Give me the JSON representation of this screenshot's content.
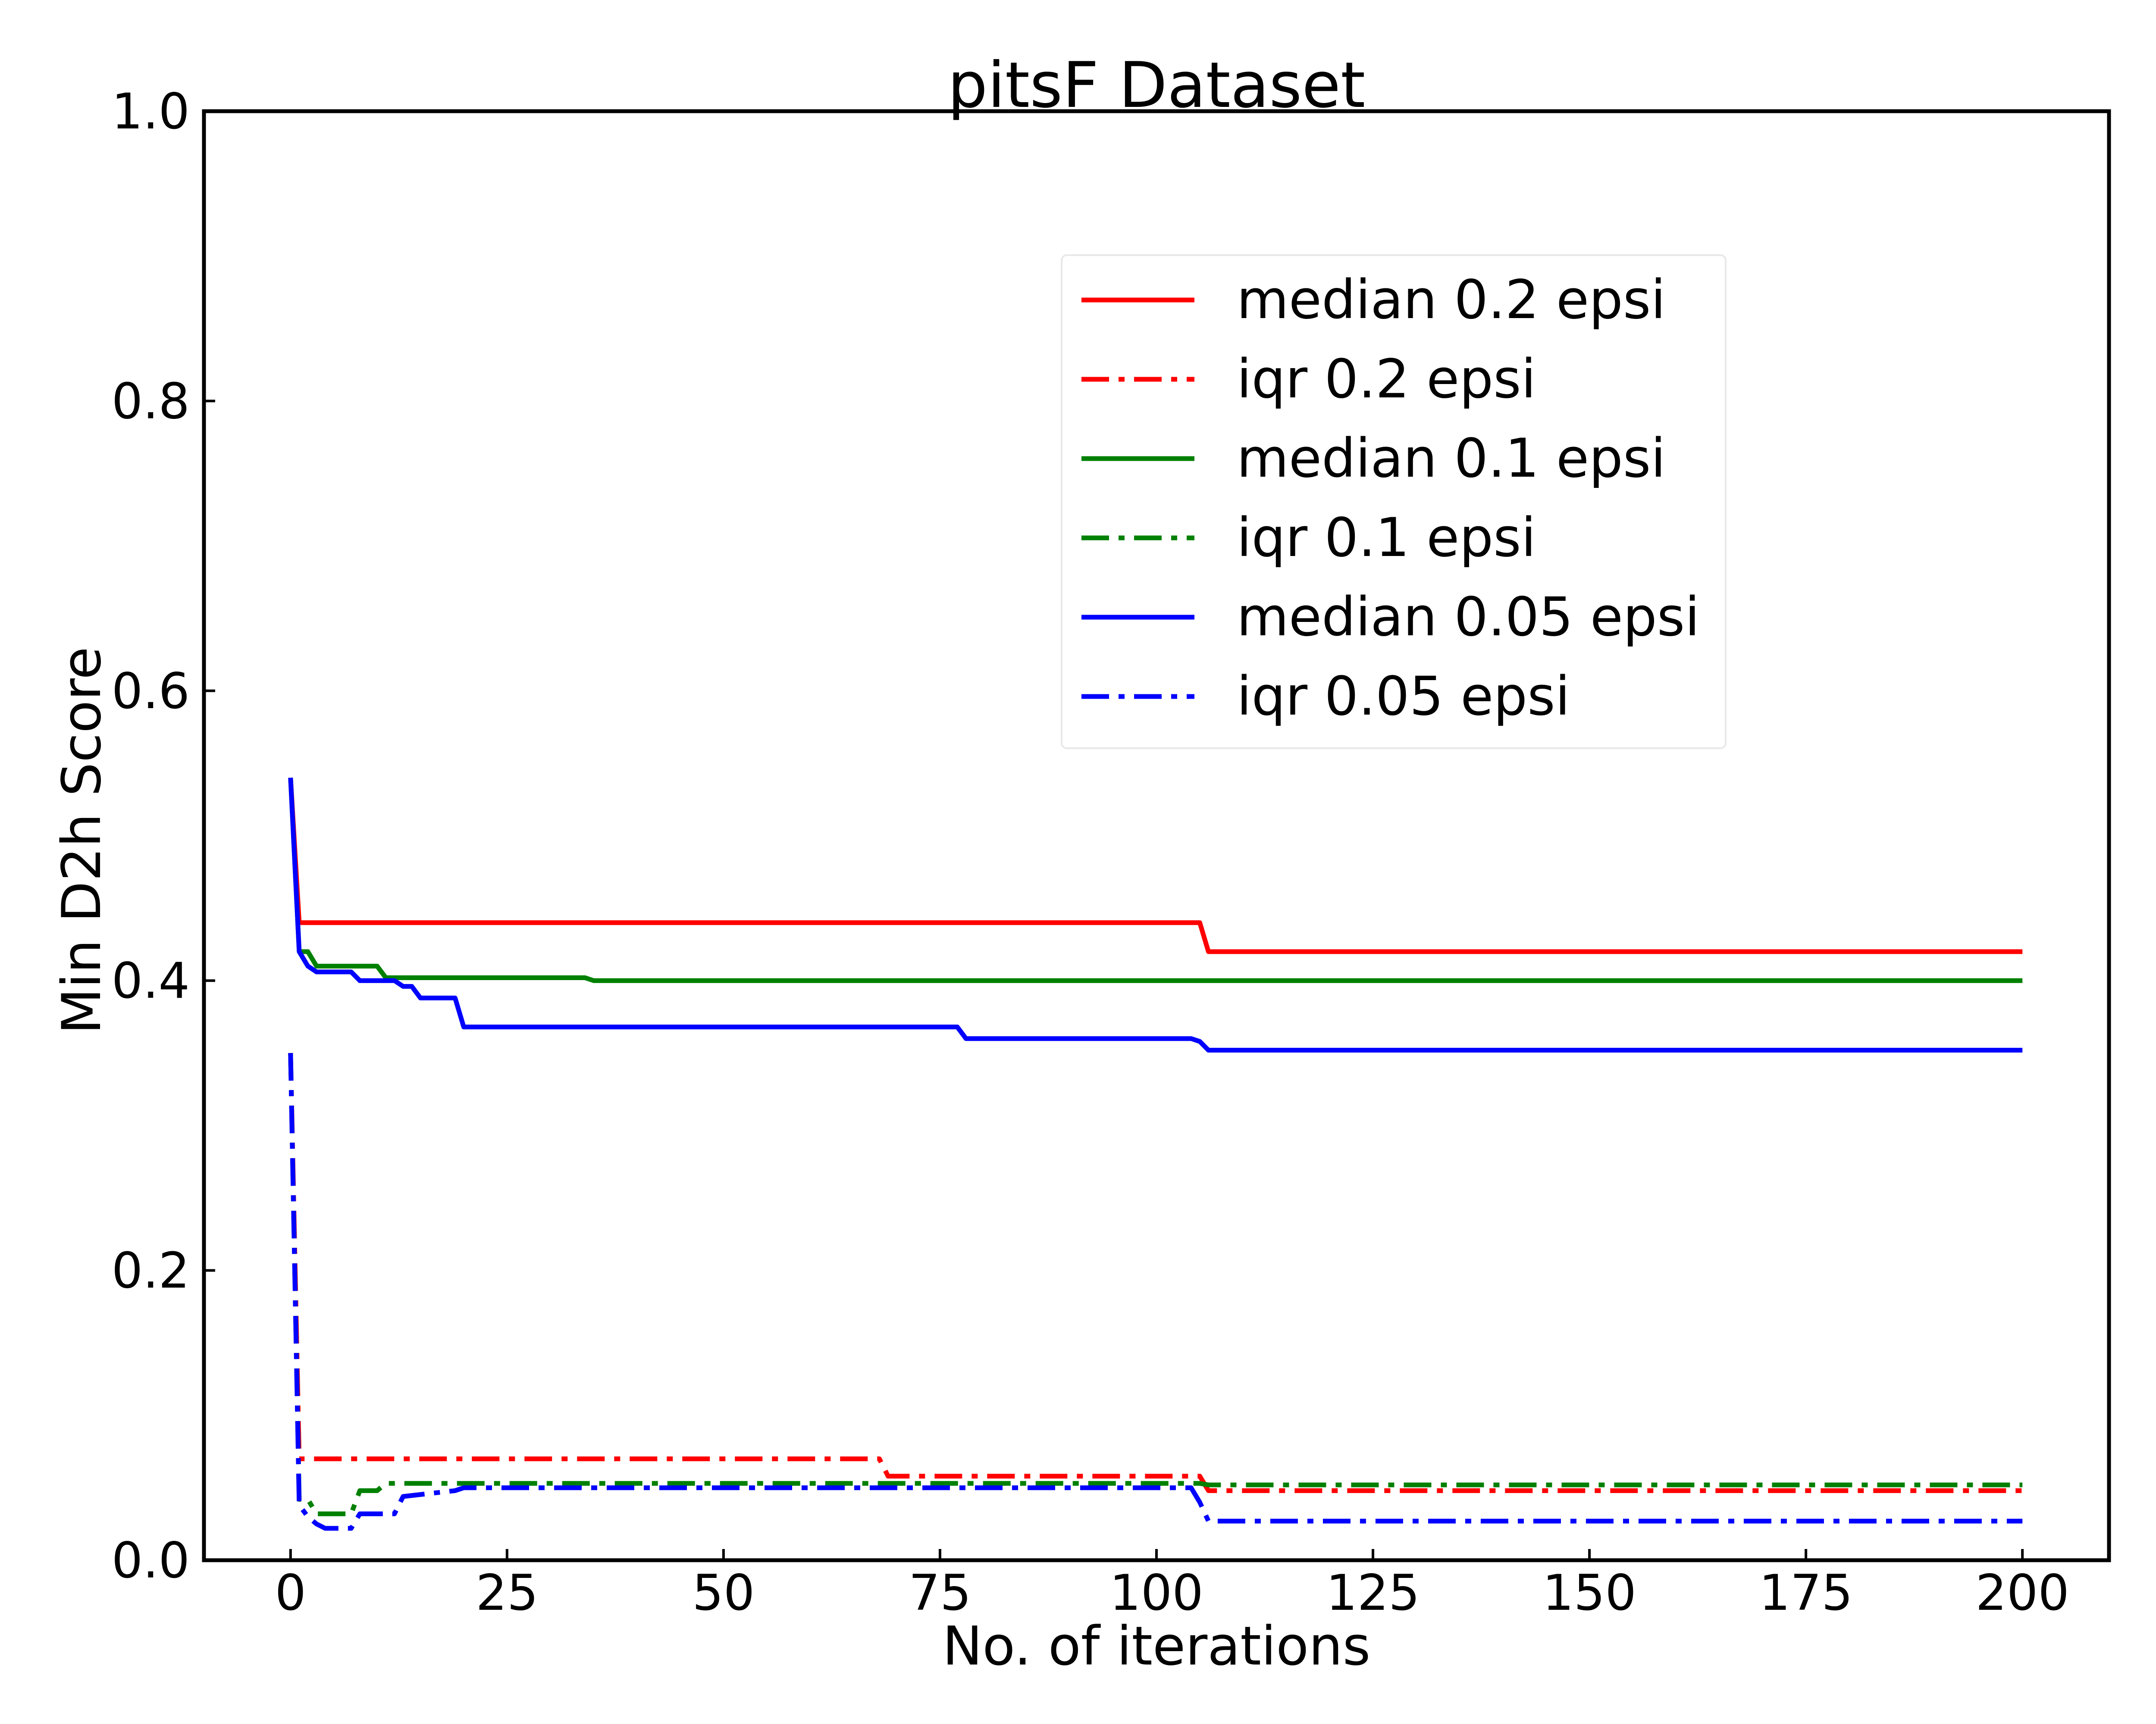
{
  "chart_data": {
    "type": "line",
    "title": "pitsF Dataset",
    "xlabel": "No. of iterations",
    "ylabel": "Min D2h Score",
    "xlim": [
      -10,
      210
    ],
    "ylim": [
      0.0,
      1.0
    ],
    "xticks": [
      0,
      25,
      50,
      75,
      100,
      125,
      150,
      175,
      200
    ],
    "xtick_labels": [
      "0",
      "25",
      "50",
      "75",
      "100",
      "125",
      "150",
      "175",
      "200"
    ],
    "yticks": [
      0.0,
      0.2,
      0.4,
      0.6,
      0.8,
      1.0
    ],
    "ytick_labels": [
      "0.0",
      "0.2",
      "0.4",
      "0.6",
      "0.8",
      "1.0"
    ],
    "grid": false,
    "legend_position": "upper right",
    "series": [
      {
        "name": "median 0.2 epsi",
        "color": "#ff0000",
        "style": "solid",
        "points": [
          [
            0,
            0.54
          ],
          [
            1,
            0.44
          ],
          [
            105,
            0.44
          ],
          [
            106,
            0.42
          ],
          [
            200,
            0.42
          ]
        ]
      },
      {
        "name": "iqr 0.2 epsi",
        "color": "#ff0000",
        "style": "dashdot",
        "points": [
          [
            0,
            0.35
          ],
          [
            1,
            0.07
          ],
          [
            68,
            0.07
          ],
          [
            69,
            0.058
          ],
          [
            105,
            0.058
          ],
          [
            106,
            0.048
          ],
          [
            200,
            0.048
          ]
        ]
      },
      {
        "name": "median 0.1 epsi",
        "color": "#008000",
        "style": "solid",
        "points": [
          [
            0,
            0.54
          ],
          [
            1,
            0.42
          ],
          [
            2,
            0.42
          ],
          [
            3,
            0.41
          ],
          [
            10,
            0.41
          ],
          [
            11,
            0.402
          ],
          [
            34,
            0.402
          ],
          [
            35,
            0.4
          ],
          [
            200,
            0.4
          ]
        ]
      },
      {
        "name": "iqr 0.1 epsi",
        "color": "#008000",
        "style": "dashdot",
        "points": [
          [
            0,
            0.35
          ],
          [
            1,
            0.042
          ],
          [
            2,
            0.042
          ],
          [
            3,
            0.032
          ],
          [
            7,
            0.032
          ],
          [
            8,
            0.048
          ],
          [
            10,
            0.048
          ],
          [
            11,
            0.053
          ],
          [
            105,
            0.053
          ],
          [
            106,
            0.052
          ],
          [
            200,
            0.052
          ]
        ]
      },
      {
        "name": "median 0.05 epsi",
        "color": "#0000ff",
        "style": "solid",
        "points": [
          [
            0,
            0.54
          ],
          [
            1,
            0.42
          ],
          [
            2,
            0.41
          ],
          [
            3,
            0.406
          ],
          [
            7,
            0.406
          ],
          [
            8,
            0.4
          ],
          [
            12,
            0.4
          ],
          [
            13,
            0.396
          ],
          [
            14,
            0.396
          ],
          [
            15,
            0.388
          ],
          [
            19,
            0.388
          ],
          [
            20,
            0.368
          ],
          [
            77,
            0.368
          ],
          [
            78,
            0.36
          ],
          [
            104,
            0.36
          ],
          [
            105,
            0.358
          ],
          [
            106,
            0.352
          ],
          [
            200,
            0.352
          ]
        ]
      },
      {
        "name": "iqr 0.05 epsi",
        "color": "#0000ff",
        "style": "dashdot",
        "points": [
          [
            0,
            0.35
          ],
          [
            1,
            0.038
          ],
          [
            2,
            0.03
          ],
          [
            3,
            0.025
          ],
          [
            4,
            0.022
          ],
          [
            7,
            0.022
          ],
          [
            8,
            0.032
          ],
          [
            12,
            0.032
          ],
          [
            13,
            0.044
          ],
          [
            16,
            0.046
          ],
          [
            19,
            0.048
          ],
          [
            20,
            0.05
          ],
          [
            104,
            0.05
          ],
          [
            105,
            0.04
          ],
          [
            106,
            0.027
          ],
          [
            200,
            0.027
          ]
        ]
      }
    ]
  }
}
